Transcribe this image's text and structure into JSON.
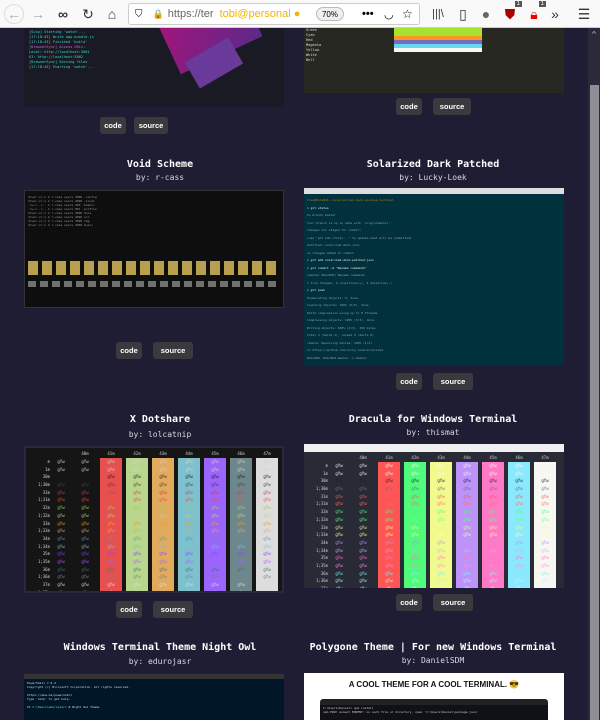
{
  "browser": {
    "url": "https://ter",
    "identity": "tobi@personal",
    "zoom": "70%",
    "badge_ublock": "1",
    "badge_other": "1"
  },
  "cards": [
    {
      "code": "code",
      "source": "source"
    },
    {
      "code": "code",
      "source": "source"
    },
    {
      "title": "Void Scheme",
      "author": "by: r-cass",
      "code": "code",
      "source": "source"
    },
    {
      "title": "Solarized Dark Patched",
      "author": "by: Lucky-Loek",
      "code": "code",
      "source": "source"
    },
    {
      "title": "X Dotshare",
      "author": "by: lolcatnip",
      "code": "code",
      "source": "source"
    },
    {
      "title": "Dracula for Windows Terminal",
      "author": "by: thismat",
      "code": "code",
      "source": "source"
    },
    {
      "title": "Windows Terminal Theme Night Owl",
      "author": "by: edurojasr"
    },
    {
      "title": "Polygone Theme | For new Windows Terminal",
      "author": "by: DanielSDM",
      "banner": "A COOL THEME FOR A COOL TERMINAL. 😎"
    }
  ],
  "colortest": {
    "fg_rows": [
      "m",
      "1m",
      "30m",
      "1;30m",
      "31m",
      "1;31m",
      "32m",
      "1;32m",
      "33m",
      "1;33m",
      "34m",
      "1;34m",
      "35m",
      "1;35m",
      "36m",
      "1;36m",
      "37m",
      "1;37m"
    ],
    "bg_cols": [
      "40m",
      "41m",
      "42m",
      "43m",
      "44m",
      "45m",
      "46m",
      "47m"
    ],
    "sample": "gYw",
    "xdotshare": {
      "bg": [
        "#151515",
        "#e84f4f",
        "#b8d68c",
        "#e1aa5d",
        "#7dc1cf",
        "#9b64fb",
        "#6d878d",
        "#dddddd"
      ],
      "fg": [
        "#d7d0c7",
        "#d7d0c7",
        "#151515",
        "#404040",
        "#d23d3d",
        "#e84f4f",
        "#a0cf5d",
        "#b8d68c",
        "#f39d21",
        "#e1aa5d",
        "#4e9fb1",
        "#7dc1cf",
        "#8542ff",
        "#9b64fb",
        "#42717b",
        "#6d878d",
        "#dddddd",
        "#dddddd"
      ]
    },
    "dracula": {
      "bg": [
        "#21222c",
        "#ff5555",
        "#50fa7b",
        "#f1fa8c",
        "#bd93f9",
        "#ff79c6",
        "#8be9fd",
        "#f8f8f2"
      ],
      "fg": [
        "#f8f8f2",
        "#f8f8f2",
        "#21222c",
        "#6272a4",
        "#ff5555",
        "#ff6e6e",
        "#50fa7b",
        "#69ff94",
        "#f1fa8c",
        "#ffffa5",
        "#bd93f9",
        "#d6acff",
        "#ff79c6",
        "#ff92df",
        "#8be9fd",
        "#a4ffff",
        "#f8f8f2",
        "#ffffff"
      ]
    }
  },
  "solarized_lines": [
    "Ilse@HuisRGS ~/p/solarized-dark-windows-terminal",
    "> git status",
    "On branch master",
    "Your branch is up to date with 'origin/master'.",
    "Changes not staged for commit:",
    "  (use \"git add <file>...\" to update what will be committed)",
    "  modified:   solarized-dark.json",
    "no changes added to commit",
    "> git add solarized-dark-patched.json",
    "> git commit -m \"Rename commands\"",
    "[master 82ec8b8] Rename commands",
    " 1 file changed, 4 insertions(+), 4 deletions(-)",
    "> git push",
    "Enumerating objects: 5, done.",
    "Counting objects: 100% (5/5), done.",
    "Delta compression using up to 8 threads",
    "Compressing objects: 100% (3/3), done.",
    "Writing objects: 100% (3/3), 366 bytes",
    "Total 3 (delta 1), reused 0 (delta 0)",
    "remote: Resolving deltas: 100% (1/1)",
    "To https://github.com/lucky-loek/solarized",
    "   82ec8b8..82ec8b8  master -> master"
  ],
  "polygone_lines": [
    "C:\\Users\\Daniel> npm install",
    "npm ERR! enoent ENOENT: no such file or directory, open 'C:\\Users\\Daniel\\package.json'"
  ],
  "colors": {
    "page_bg": "#1f1d33",
    "button_bg": "#3a3a3e",
    "identity": "#f0b400"
  }
}
